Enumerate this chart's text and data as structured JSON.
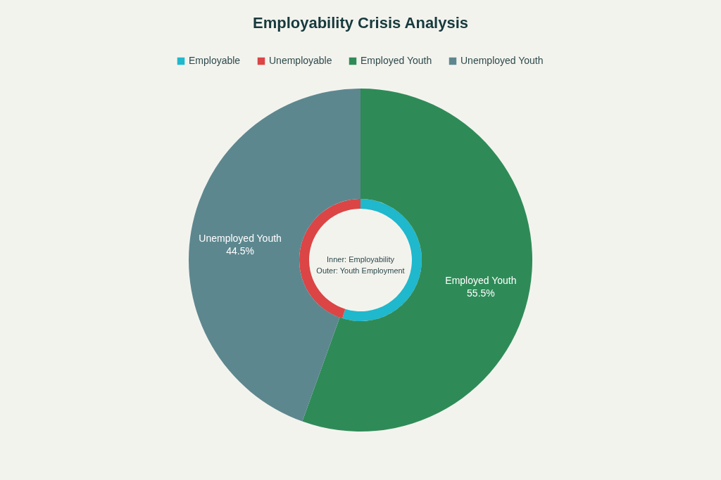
{
  "chart_data": [
    {
      "type": "donut",
      "title": "Employability Crisis Analysis",
      "categories": [
        "Employable",
        "Unemployable"
      ],
      "values": [
        54.8,
        45.2
      ],
      "colors": [
        "#1fb8cd",
        "#db4545"
      ],
      "legend": "top",
      "annotations": [
        "Inner: Employability",
        "Outer: Youth Employment"
      ]
    },
    {
      "type": "donut",
      "categories": [
        "Employed Youth",
        "Unemployed Youth"
      ],
      "values": [
        55.5,
        44.5
      ],
      "colors": [
        "#2e8b57",
        "#5d878f"
      ],
      "legend": "top",
      "value_labels": [
        "55.5%",
        "44.5%"
      ]
    }
  ]
}
